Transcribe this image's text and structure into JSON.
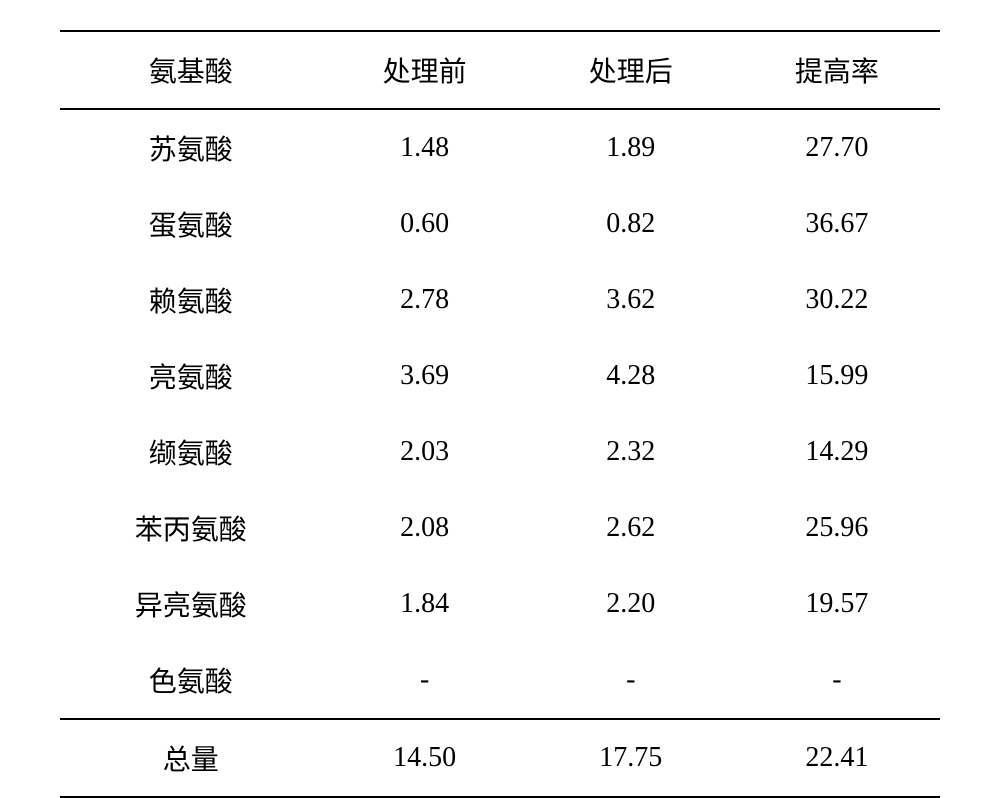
{
  "table": {
    "type": "table",
    "background_color": "#ffffff",
    "text_color": "#000000",
    "border_color": "#000000",
    "font_size_pt": 21,
    "font_family": "SimSun",
    "columns": [
      {
        "key": "name",
        "label": "氨基酸",
        "align": "center"
      },
      {
        "key": "before",
        "label": "处理前",
        "align": "center"
      },
      {
        "key": "after",
        "label": "处理后",
        "align": "center"
      },
      {
        "key": "rate",
        "label": "提高率",
        "align": "center"
      }
    ],
    "rows": [
      {
        "name": "苏氨酸",
        "before": "1.48",
        "after": "1.89",
        "rate": "27.70"
      },
      {
        "name": "蛋氨酸",
        "before": "0.60",
        "after": "0.82",
        "rate": "36.67"
      },
      {
        "name": "赖氨酸",
        "before": "2.78",
        "after": "3.62",
        "rate": "30.22"
      },
      {
        "name": "亮氨酸",
        "before": "3.69",
        "after": "4.28",
        "rate": "15.99"
      },
      {
        "name": "缬氨酸",
        "before": "2.03",
        "after": "2.32",
        "rate": "14.29"
      },
      {
        "name": "苯丙氨酸",
        "before": "2.08",
        "after": "2.62",
        "rate": "25.96"
      },
      {
        "name": "异亮氨酸",
        "before": "1.84",
        "after": "2.20",
        "rate": "19.57"
      },
      {
        "name": "色氨酸",
        "before": "-",
        "after": "-",
        "rate": "-"
      }
    ],
    "footer": {
      "name": "总量",
      "before": "14.50",
      "after": "17.75",
      "rate": "22.41"
    }
  }
}
